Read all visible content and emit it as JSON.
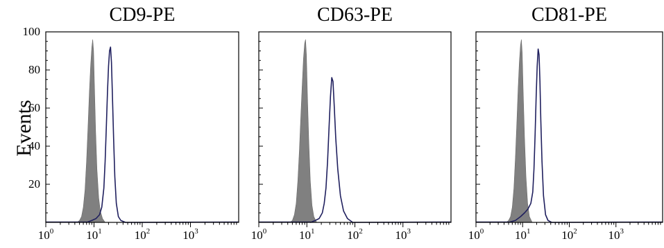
{
  "colors": {
    "isotype_fill": "#808080",
    "stain_line": "#1f1f5e",
    "axis": "#000000"
  },
  "y_axis": {
    "label": "Events",
    "ticks": [
      "20",
      "40",
      "60",
      "80",
      "100"
    ]
  },
  "chart_data": [
    {
      "type": "histogram",
      "title": "CD9-PE",
      "xscale": "log",
      "xlim": [
        1,
        10000
      ],
      "ylim": [
        0,
        100
      ],
      "ylabel": "Events",
      "x_ticks": [
        {
          "base": "10",
          "exp": "0"
        },
        {
          "base": "10",
          "exp": "1"
        },
        {
          "base": "10",
          "exp": "2"
        },
        {
          "base": "10",
          "exp": "3"
        }
      ],
      "y_ticks": [
        20,
        40,
        60,
        80,
        100
      ],
      "series": [
        {
          "kind": "filled",
          "points": [
            [
              4.5,
              0
            ],
            [
              5,
              1
            ],
            [
              5.5,
              3
            ],
            [
              6,
              8
            ],
            [
              6.5,
              17
            ],
            [
              7,
              32
            ],
            [
              7.5,
              50
            ],
            [
              8,
              68
            ],
            [
              8.5,
              82
            ],
            [
              9,
              92
            ],
            [
              9.4,
              96
            ],
            [
              9.8,
              90
            ],
            [
              10.2,
              72
            ],
            [
              10.8,
              48
            ],
            [
              11.5,
              28
            ],
            [
              12.5,
              13
            ],
            [
              13.5,
              6
            ],
            [
              15,
              2
            ],
            [
              17,
              0
            ]
          ]
        },
        {
          "kind": "line",
          "points": [
            [
              7,
              0
            ],
            [
              9,
              1
            ],
            [
              11,
              2
            ],
            [
              13,
              4
            ],
            [
              14.5,
              8
            ],
            [
              16,
              18
            ],
            [
              17,
              32
            ],
            [
              18,
              50
            ],
            [
              19,
              68
            ],
            [
              20,
              82
            ],
            [
              21,
              90
            ],
            [
              22,
              92
            ],
            [
              23,
              84
            ],
            [
              24,
              68
            ],
            [
              25.5,
              44
            ],
            [
              27,
              24
            ],
            [
              29,
              10
            ],
            [
              32,
              3
            ],
            [
              36,
              1
            ],
            [
              45,
              0
            ]
          ]
        }
      ]
    },
    {
      "type": "histogram",
      "title": "CD63-PE",
      "xscale": "log",
      "xlim": [
        1,
        10000
      ],
      "ylim": [
        0,
        100
      ],
      "x_ticks": [
        {
          "base": "10",
          "exp": "0"
        },
        {
          "base": "10",
          "exp": "1"
        },
        {
          "base": "10",
          "exp": "2"
        },
        {
          "base": "10",
          "exp": "3"
        }
      ],
      "y_ticks": [
        20,
        40,
        60,
        80,
        100
      ],
      "series": [
        {
          "kind": "filled",
          "points": [
            [
              4.5,
              0
            ],
            [
              5,
              1
            ],
            [
              5.5,
              4
            ],
            [
              6,
              10
            ],
            [
              6.5,
              22
            ],
            [
              7,
              38
            ],
            [
              7.5,
              56
            ],
            [
              8,
              72
            ],
            [
              8.5,
              86
            ],
            [
              9,
              94
            ],
            [
              9.4,
              96
            ],
            [
              9.8,
              88
            ],
            [
              10.3,
              66
            ],
            [
              11,
              42
            ],
            [
              11.8,
              22
            ],
            [
              12.8,
              9
            ],
            [
              14,
              3
            ],
            [
              16,
              0
            ]
          ]
        },
        {
          "kind": "line",
          "points": [
            [
              12,
              0
            ],
            [
              15,
              1
            ],
            [
              18,
              2
            ],
            [
              21,
              5
            ],
            [
              23,
              10
            ],
            [
              25,
              18
            ],
            [
              27,
              32
            ],
            [
              29,
              50
            ],
            [
              31,
              66
            ],
            [
              33,
              76
            ],
            [
              35,
              74
            ],
            [
              37,
              62
            ],
            [
              40,
              44
            ],
            [
              44,
              28
            ],
            [
              50,
              14
            ],
            [
              58,
              6
            ],
            [
              70,
              2
            ],
            [
              90,
              0
            ]
          ]
        }
      ]
    },
    {
      "type": "histogram",
      "title": "CD81-PE",
      "xscale": "log",
      "xlim": [
        1,
        10000
      ],
      "ylim": [
        0,
        100
      ],
      "x_ticks": [
        {
          "base": "10",
          "exp": "0"
        },
        {
          "base": "10",
          "exp": "1"
        },
        {
          "base": "10",
          "exp": "2"
        },
        {
          "base": "10",
          "exp": "3"
        }
      ],
      "y_ticks": [
        20,
        40,
        60,
        80,
        100
      ],
      "series": [
        {
          "kind": "filled",
          "points": [
            [
              4.5,
              0
            ],
            [
              5,
              1
            ],
            [
              5.5,
              3
            ],
            [
              6,
              8
            ],
            [
              6.5,
              18
            ],
            [
              7,
              34
            ],
            [
              7.5,
              52
            ],
            [
              8,
              70
            ],
            [
              8.5,
              84
            ],
            [
              9,
              93
            ],
            [
              9.4,
              96
            ],
            [
              9.8,
              89
            ],
            [
              10.3,
              68
            ],
            [
              11,
              44
            ],
            [
              11.8,
              24
            ],
            [
              12.8,
              10
            ],
            [
              14,
              3
            ],
            [
              16,
              0
            ]
          ]
        },
        {
          "kind": "line",
          "points": [
            [
              5,
              0
            ],
            [
              7,
              1
            ],
            [
              9,
              3
            ],
            [
              11,
              5
            ],
            [
              13,
              7
            ],
            [
              15,
              10
            ],
            [
              16.5,
              16
            ],
            [
              17.5,
              28
            ],
            [
              18.5,
              46
            ],
            [
              19.5,
              66
            ],
            [
              20.5,
              82
            ],
            [
              21.5,
              91
            ],
            [
              22.5,
              88
            ],
            [
              23.5,
              74
            ],
            [
              24.5,
              54
            ],
            [
              26,
              32
            ],
            [
              28,
              14
            ],
            [
              31,
              4
            ],
            [
              35,
              1
            ],
            [
              42,
              0
            ]
          ]
        }
      ]
    }
  ]
}
